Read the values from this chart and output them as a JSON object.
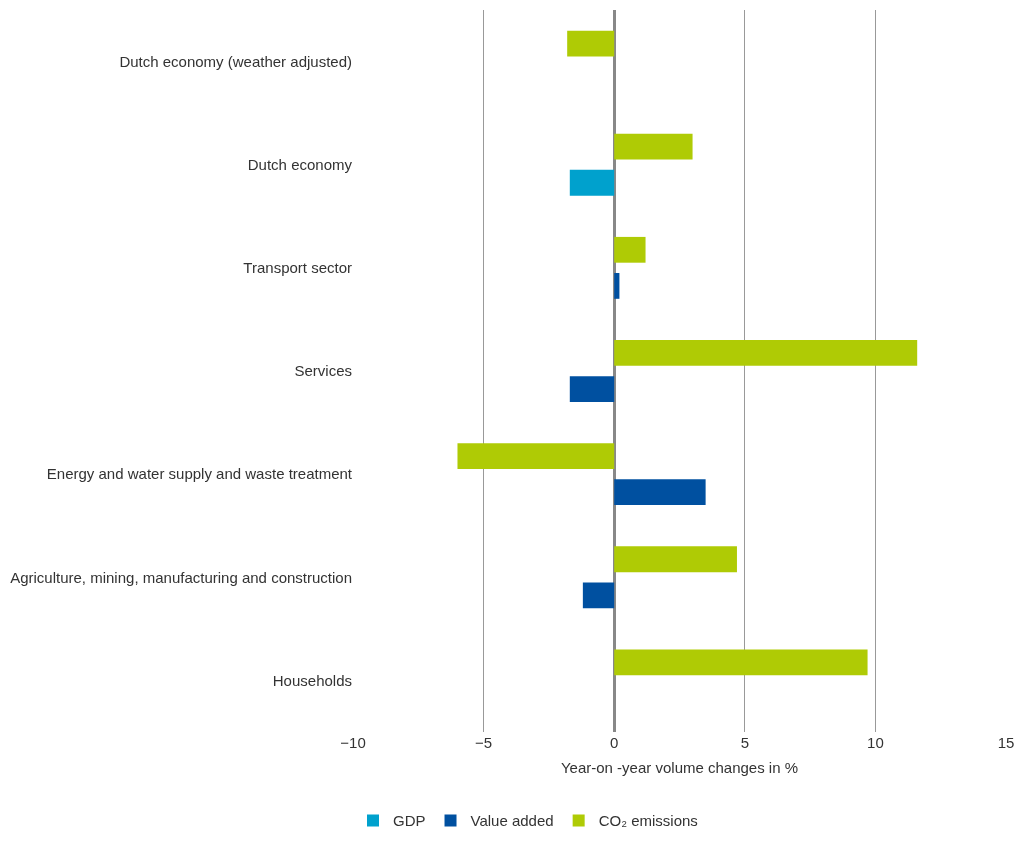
{
  "chart_data": {
    "type": "bar",
    "orientation": "horizontal",
    "categories": [
      "Dutch economy (weather adjusted)",
      "Dutch economy",
      "Transport sector",
      "Services",
      "Energy and water supply and waste treatment",
      "Agriculture, mining, manufacturing and construction",
      "Households"
    ],
    "series": [
      {
        "name": "GDP",
        "color": "#00a1cd",
        "values": [
          null,
          -1.7,
          null,
          null,
          null,
          null,
          null
        ]
      },
      {
        "name": "Value added",
        "color": "#0050a0",
        "values": [
          null,
          null,
          0.2,
          -1.7,
          3.5,
          -1.2,
          null
        ]
      },
      {
        "name": "CO₂ emissions",
        "color": "#afcb05",
        "values": [
          -1.8,
          3.0,
          1.2,
          11.6,
          -6.0,
          4.7,
          9.7
        ]
      }
    ],
    "xlabel": "Year-on -year volume changes in %",
    "xlim": [
      -10,
      15
    ],
    "xticks": [
      {
        "value": -10,
        "label": "−10"
      },
      {
        "value": -5,
        "label": "−5"
      },
      0,
      5,
      10,
      15
    ],
    "grid": "x",
    "legend": "bottom left"
  }
}
